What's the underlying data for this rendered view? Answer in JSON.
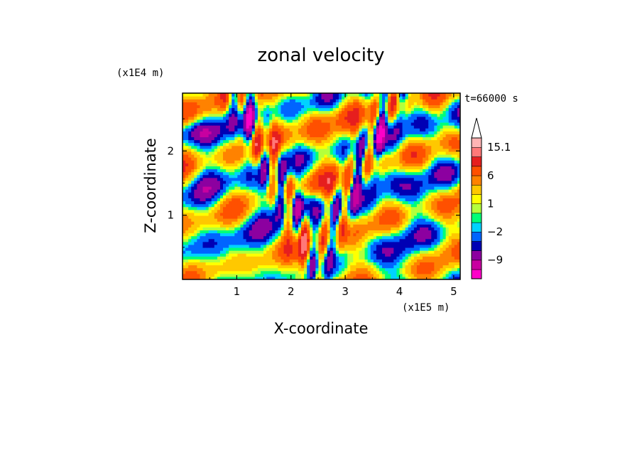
{
  "chart_data": {
    "type": "heatmap",
    "title": "zonal velocity",
    "xlabel": "X-coordinate",
    "ylabel": "Z-coordinate",
    "x_unit": "(x1E5 m)",
    "y_unit": "(x1E4 m)",
    "time_label": "t=66000 s",
    "xlim": [
      0,
      5.12
    ],
    "ylim": [
      0,
      2.9
    ],
    "x_ticks": [
      1,
      2,
      3,
      4,
      5
    ],
    "y_ticks": [
      1,
      2
    ],
    "x_tick_labels": [
      "1",
      "2",
      "3",
      "4",
      "5"
    ],
    "y_tick_labels": [
      "1",
      "2"
    ],
    "colorbar": {
      "levels": [
        -15.1,
        -12,
        -9,
        -6,
        -4,
        -2,
        -1,
        0,
        1,
        2,
        4,
        6,
        9,
        12,
        15.1
      ],
      "colors": [
        "#ff00c8",
        "#c800a0",
        "#8c00a0",
        "#0000b4",
        "#0064ff",
        "#00d2ff",
        "#00ff78",
        "#b4ff3c",
        "#ffff00",
        "#ffc800",
        "#ff8200",
        "#ff5000",
        "#e61e1e",
        "#ff7878",
        "#ffb4b4"
      ],
      "labels": [
        {
          "value": 15.1,
          "text": "15.1"
        },
        {
          "value": 6,
          "text": "6"
        },
        {
          "value": 1,
          "text": "1"
        },
        {
          "value": -2,
          "text": "−2"
        },
        {
          "value": -9,
          "text": "−9"
        }
      ],
      "extend_max": true
    }
  }
}
